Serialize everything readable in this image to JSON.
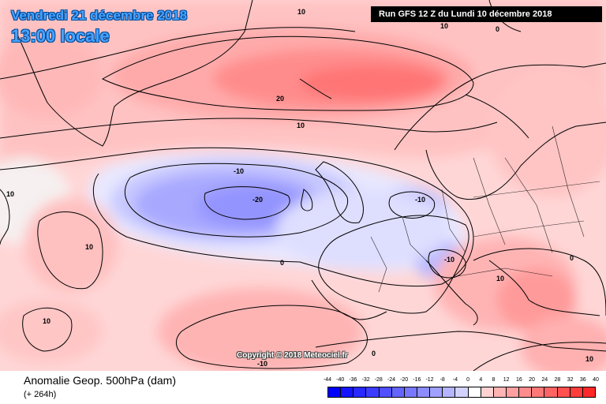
{
  "header": {
    "date": "Vendredi 21 décembre 2018",
    "time": "13:00 locale",
    "run": "Run GFS 12 Z du Lundi 10 décembre 2018"
  },
  "footer": {
    "title": "Anomalie Geop. 500hPa (dam)",
    "subtitle": "(+ 264h)",
    "copyright": "Copyright © 2018 Meteociel.fr"
  },
  "map": {
    "contour_labels": [
      {
        "text": "10"
      },
      {
        "text": "0"
      },
      {
        "text": "20"
      },
      {
        "text": "10"
      },
      {
        "text": "-10"
      },
      {
        "text": "-20"
      },
      {
        "text": "-10"
      },
      {
        "text": "0"
      },
      {
        "text": "10"
      },
      {
        "text": "10"
      },
      {
        "text": "-10"
      },
      {
        "text": "10"
      },
      {
        "text": "10"
      },
      {
        "text": "0"
      },
      {
        "text": "-10"
      },
      {
        "text": "10"
      },
      {
        "text": "10"
      },
      {
        "text": "0"
      }
    ]
  },
  "legend": {
    "labels": [
      "-44",
      "-40",
      "-36",
      "-32",
      "-28",
      "-24",
      "-20",
      "-16",
      "-12",
      "-8",
      "-4",
      "0",
      "4",
      "8",
      "12",
      "16",
      "20",
      "24",
      "28",
      "32",
      "36",
      "40"
    ],
    "colors": [
      "#0000ff",
      "#1414ff",
      "#2828ff",
      "#3c3cff",
      "#5050ff",
      "#6464ff",
      "#7878ff",
      "#8c8cff",
      "#a0a0ff",
      "#b4b4ff",
      "#d2d2ff",
      "#ffffff",
      "#ffd2d2",
      "#ffb4b4",
      "#ffa0a0",
      "#ff8c8c",
      "#ff7878",
      "#ff6464",
      "#ff5050",
      "#ff3c3c",
      "#ff2828"
    ]
  }
}
